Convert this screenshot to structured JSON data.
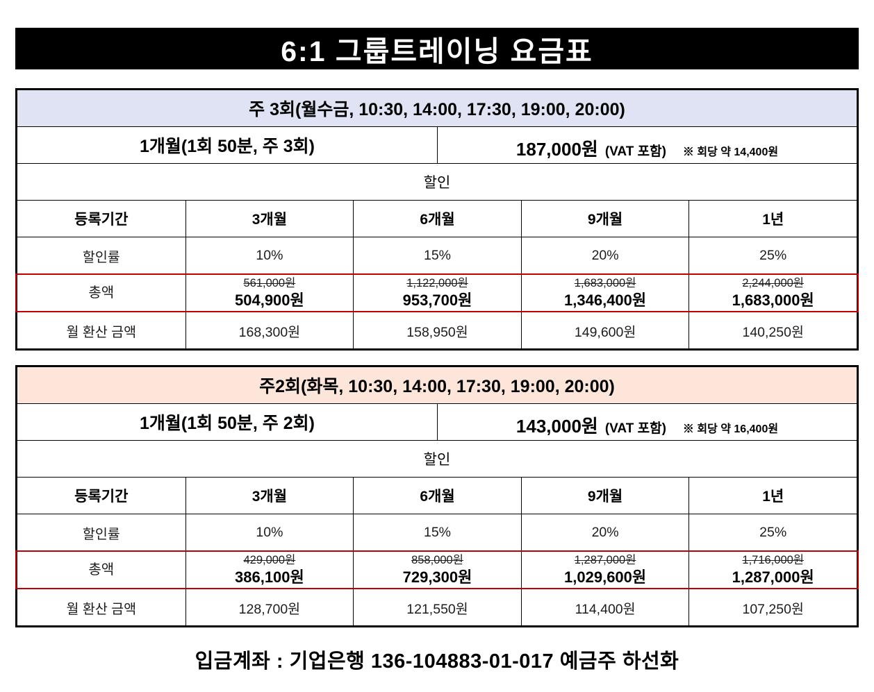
{
  "title": "6:1  그룹트레이닝  요금표",
  "colors": {
    "banner_bg": "#000000",
    "banner_text": "#ffffff",
    "table1_header_bg": "#dfe3f3",
    "table2_header_bg": "#fde5d9",
    "highlight_border": "#c00000"
  },
  "tables": [
    {
      "schedule": "주 3회(월수금, 10:30, 14:00, 17:30, 19:00, 20:00)",
      "base_plan": "1개월(1회 50분, 주 3회)",
      "base_price": "187,000원",
      "vat_note": "(VAT 포함)",
      "per_session_note": "※ 회당 약 14,400원",
      "discount_header": "할인",
      "period_label": "등록기간",
      "periods": [
        "3개월",
        "6개월",
        "9개월",
        "1년"
      ],
      "discount_rate_label": "할인률",
      "discount_rates": [
        "10%",
        "15%",
        "20%",
        "25%"
      ],
      "total_label": "총액",
      "original_prices": [
        "561,000원",
        "1,122,000원",
        "1,683,000원",
        "2,244,000원"
      ],
      "discounted_prices": [
        "504,900원",
        "953,700원",
        "1,346,400원",
        "1,683,000원"
      ],
      "monthly_label": "월 환산 금액",
      "monthly_prices": [
        "168,300원",
        "158,950원",
        "149,600원",
        "140,250원"
      ]
    },
    {
      "schedule": "주2회(화목, 10:30, 14:00, 17:30, 19:00, 20:00)",
      "base_plan": "1개월(1회 50분, 주 2회)",
      "base_price": "143,000원",
      "vat_note": "(VAT 포함)",
      "per_session_note": "※ 회당 약 16,400원",
      "discount_header": "할인",
      "period_label": "등록기간",
      "periods": [
        "3개월",
        "6개월",
        "9개월",
        "1년"
      ],
      "discount_rate_label": "할인률",
      "discount_rates": [
        "10%",
        "15%",
        "20%",
        "25%"
      ],
      "total_label": "총액",
      "original_prices": [
        "429,000원",
        "858,000원",
        "1,287,000원",
        "1,716,000원"
      ],
      "discounted_prices": [
        "386,100원",
        "729,300원",
        "1,029,600원",
        "1,287,000원"
      ],
      "monthly_label": "월 환산 금액",
      "monthly_prices": [
        "128,700원",
        "121,550원",
        "114,400원",
        "107,250원"
      ]
    }
  ],
  "footer": "입금계좌 : 기업은행 136-104883-01-017 예금주 하선화"
}
